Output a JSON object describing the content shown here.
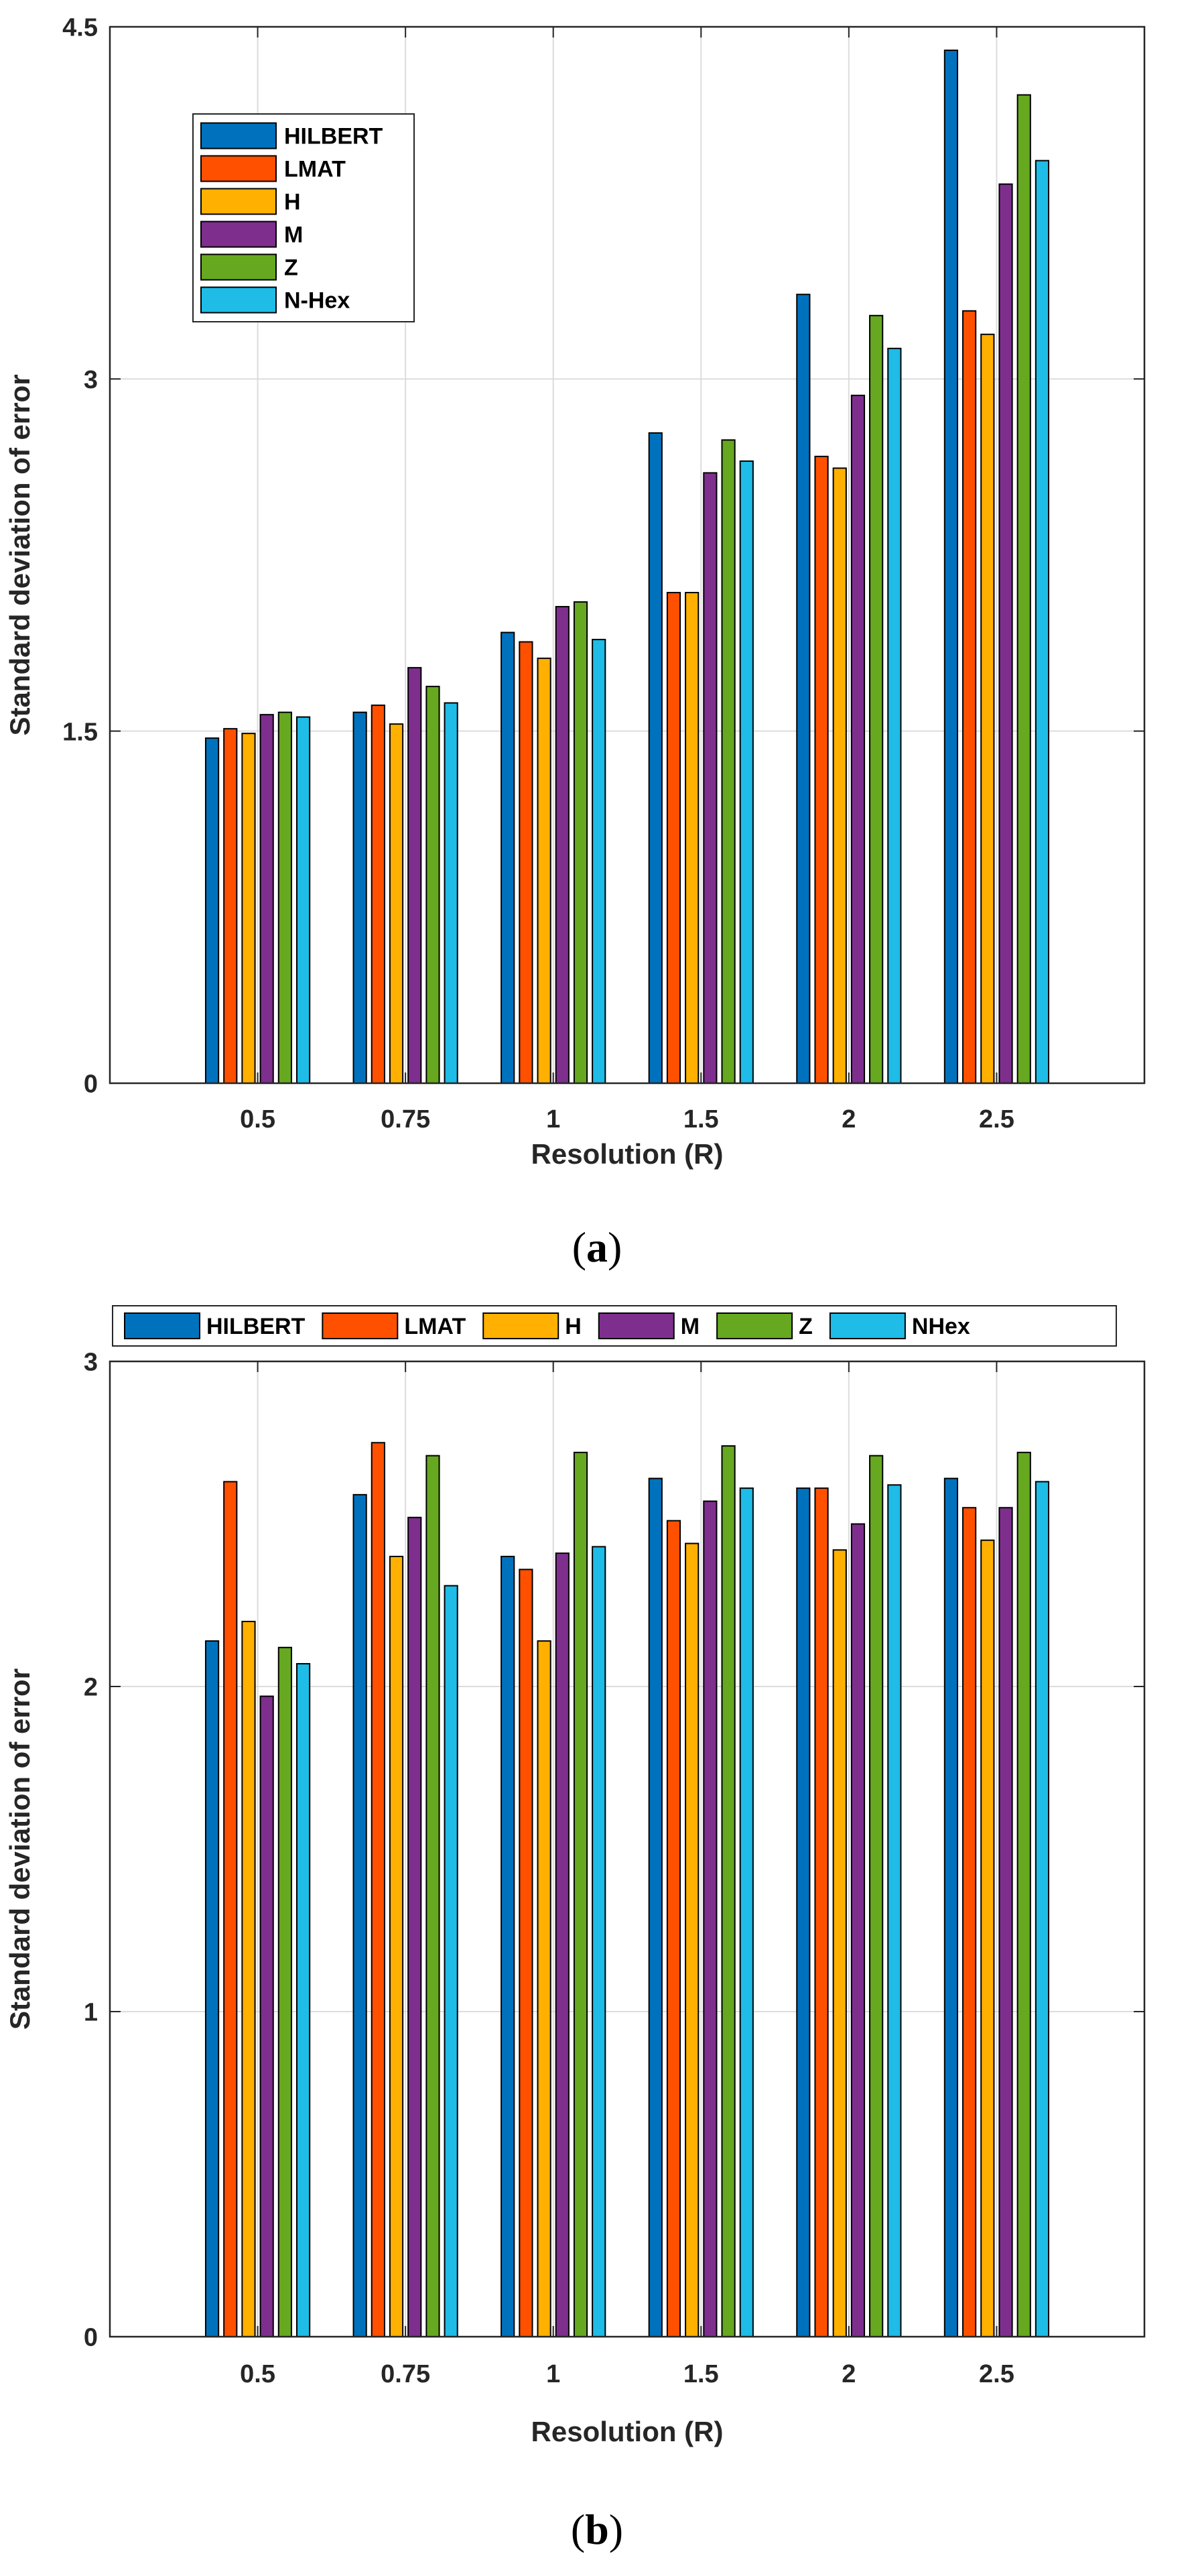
{
  "figure": {
    "colors": [
      "#0072BD",
      "#FF5000",
      "#FFB000",
      "#7E2F8E",
      "#66A81F",
      "#1EBCE6"
    ],
    "background": "#ffffff",
    "grid_color": "#dcdcdc"
  },
  "chart_data": [
    {
      "id": "a",
      "type": "bar",
      "caption_letter": "a",
      "caption_open": "(",
      "caption_close": ")",
      "xlabel": "Resolution (R)",
      "ylabel": "Standard deviation of error",
      "categories": [
        "0.5",
        "0.75",
        "1",
        "1.5",
        "2",
        "2.5"
      ],
      "ylim": [
        0,
        4.5
      ],
      "yticks": [
        0,
        1.5,
        3,
        4.5
      ],
      "ytick_labels": [
        "0",
        "1.5",
        "3",
        "4.5"
      ],
      "grid": true,
      "legend_position": "top-left",
      "legend_orientation": "vertical",
      "series": [
        {
          "name": "HILBERT",
          "values": [
            1.47,
            1.58,
            1.92,
            2.77,
            3.36,
            4.4
          ]
        },
        {
          "name": "LMAT",
          "values": [
            1.51,
            1.61,
            1.88,
            2.09,
            2.67,
            3.29
          ]
        },
        {
          "name": "H",
          "values": [
            1.49,
            1.53,
            1.81,
            2.09,
            2.62,
            3.19
          ]
        },
        {
          "name": "M",
          "values": [
            1.57,
            1.77,
            2.03,
            2.6,
            2.93,
            3.83
          ]
        },
        {
          "name": "Z",
          "values": [
            1.58,
            1.69,
            2.05,
            2.74,
            3.27,
            4.21
          ]
        },
        {
          "name": "N-Hex",
          "values": [
            1.56,
            1.62,
            1.89,
            2.65,
            3.13,
            3.93
          ]
        }
      ]
    },
    {
      "id": "b",
      "type": "bar",
      "caption_letter": "b",
      "caption_open": "(",
      "caption_close": ")",
      "xlabel": "Resolution (R)",
      "ylabel": "Standard deviation of error",
      "categories": [
        "0.5",
        "0.75",
        "1",
        "1.5",
        "2",
        "2.5"
      ],
      "ylim": [
        0,
        3
      ],
      "yticks": [
        0,
        1,
        2,
        3
      ],
      "ytick_labels": [
        "0",
        "1",
        "2",
        "3"
      ],
      "grid": true,
      "legend_position": "top (above plot)",
      "legend_orientation": "horizontal",
      "series": [
        {
          "name": "HILBERT",
          "values": [
            2.14,
            2.59,
            2.4,
            2.64,
            2.61,
            2.64
          ]
        },
        {
          "name": "LMAT",
          "values": [
            2.63,
            2.75,
            2.36,
            2.51,
            2.61,
            2.55
          ]
        },
        {
          "name": "H",
          "values": [
            2.2,
            2.4,
            2.14,
            2.44,
            2.42,
            2.45
          ]
        },
        {
          "name": "M",
          "values": [
            1.97,
            2.52,
            2.41,
            2.57,
            2.5,
            2.55
          ]
        },
        {
          "name": "Z",
          "values": [
            2.12,
            2.71,
            2.72,
            2.74,
            2.71,
            2.72
          ]
        },
        {
          "name": "NHex",
          "values": [
            2.07,
            2.31,
            2.43,
            2.61,
            2.62,
            2.63
          ]
        }
      ]
    }
  ]
}
